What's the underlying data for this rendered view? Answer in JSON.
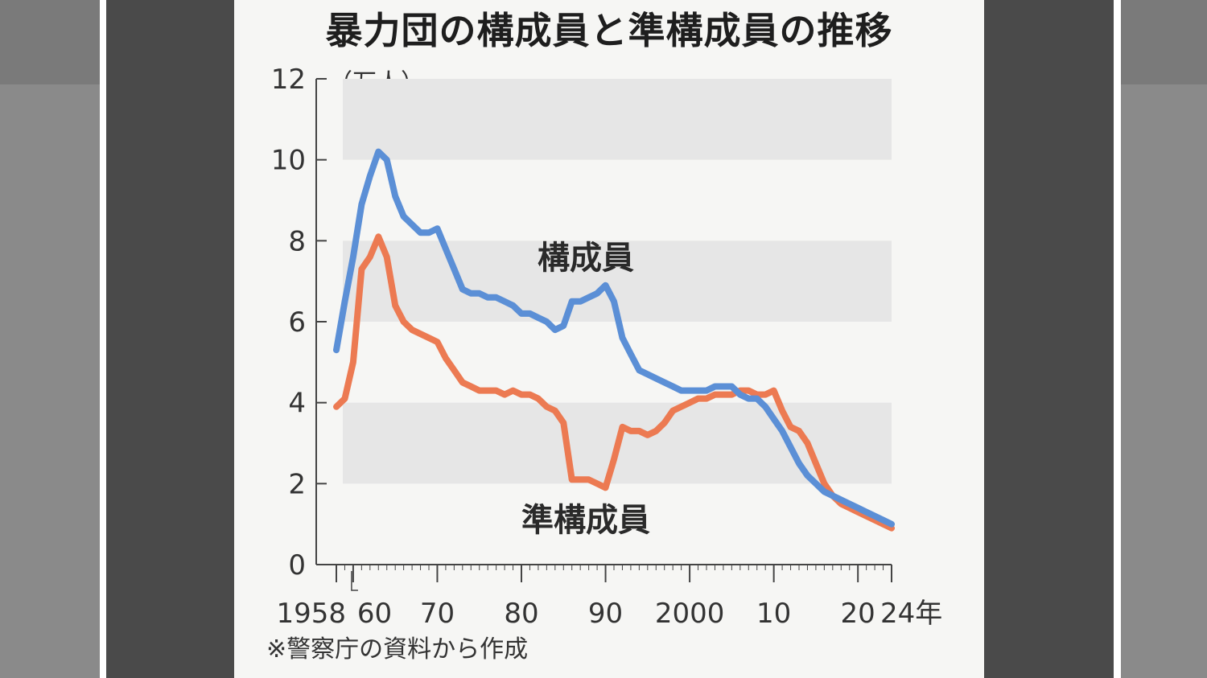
{
  "title": "暴力団の構成員と準構成員の推移",
  "unit": "（万人）",
  "source": "※警察庁の資料から作成",
  "colors": {
    "members": "#5b8fd6",
    "associates": "#ec7a52",
    "band": "#e6e6e6",
    "axis": "#444444"
  },
  "chart_data": {
    "type": "line",
    "title": "暴力団の構成員と準構成員の推移",
    "ylabel": "（万人）",
    "xlabel": "",
    "ylim": [
      0,
      12
    ],
    "xlim": [
      1958,
      2024
    ],
    "y_ticks": [
      0,
      2,
      4,
      6,
      8,
      10,
      12
    ],
    "x_ticks": [
      {
        "value": 1958,
        "label": "1958"
      },
      {
        "value": 1960,
        "label": "60"
      },
      {
        "value": 1970,
        "label": "70"
      },
      {
        "value": 1980,
        "label": "80"
      },
      {
        "value": 1990,
        "label": "90"
      },
      {
        "value": 2000,
        "label": "2000"
      },
      {
        "value": 2010,
        "label": "10"
      },
      {
        "value": 2020,
        "label": "20"
      },
      {
        "value": 2024,
        "label": "24年"
      }
    ],
    "banded_background": true,
    "series": [
      {
        "name": "構成員",
        "color": "#5b8fd6",
        "x": [
          1958,
          1959,
          1960,
          1961,
          1962,
          1963,
          1964,
          1965,
          1966,
          1967,
          1968,
          1969,
          1970,
          1971,
          1972,
          1973,
          1974,
          1975,
          1976,
          1977,
          1978,
          1979,
          1980,
          1981,
          1982,
          1983,
          1984,
          1985,
          1986,
          1987,
          1988,
          1989,
          1990,
          1991,
          1992,
          1993,
          1994,
          1995,
          1996,
          1997,
          1998,
          1999,
          2000,
          2001,
          2002,
          2003,
          2004,
          2005,
          2006,
          2007,
          2008,
          2009,
          2010,
          2011,
          2012,
          2013,
          2014,
          2015,
          2016,
          2017,
          2018,
          2019,
          2020,
          2021,
          2022,
          2023,
          2024
        ],
        "values": [
          5.3,
          6.5,
          7.6,
          8.9,
          9.6,
          10.2,
          10.0,
          9.1,
          8.6,
          8.4,
          8.2,
          8.2,
          8.3,
          7.8,
          7.3,
          6.8,
          6.7,
          6.7,
          6.6,
          6.6,
          6.5,
          6.4,
          6.2,
          6.2,
          6.1,
          6.0,
          5.8,
          5.9,
          6.5,
          6.5,
          6.6,
          6.7,
          6.9,
          6.5,
          5.6,
          5.2,
          4.8,
          4.7,
          4.6,
          4.5,
          4.4,
          4.3,
          4.3,
          4.3,
          4.3,
          4.4,
          4.4,
          4.4,
          4.2,
          4.1,
          4.1,
          3.9,
          3.6,
          3.3,
          2.9,
          2.5,
          2.2,
          2.0,
          1.8,
          1.7,
          1.6,
          1.5,
          1.4,
          1.3,
          1.2,
          1.1,
          1.0
        ]
      },
      {
        "name": "準構成員",
        "color": "#ec7a52",
        "x": [
          1958,
          1959,
          1960,
          1961,
          1962,
          1963,
          1964,
          1965,
          1966,
          1967,
          1968,
          1969,
          1970,
          1971,
          1972,
          1973,
          1974,
          1975,
          1976,
          1977,
          1978,
          1979,
          1980,
          1981,
          1982,
          1983,
          1984,
          1985,
          1986,
          1987,
          1988,
          1989,
          1990,
          1991,
          1992,
          1993,
          1994,
          1995,
          1996,
          1997,
          1998,
          1999,
          2000,
          2001,
          2002,
          2003,
          2004,
          2005,
          2006,
          2007,
          2008,
          2009,
          2010,
          2011,
          2012,
          2013,
          2014,
          2015,
          2016,
          2017,
          2018,
          2019,
          2020,
          2021,
          2022,
          2023,
          2024
        ],
        "values": [
          3.9,
          4.1,
          5.0,
          7.3,
          7.6,
          8.1,
          7.6,
          6.4,
          6.0,
          5.8,
          5.7,
          5.6,
          5.5,
          5.1,
          4.8,
          4.5,
          4.4,
          4.3,
          4.3,
          4.3,
          4.2,
          4.3,
          4.2,
          4.2,
          4.1,
          3.9,
          3.8,
          3.5,
          2.1,
          2.1,
          2.1,
          2.0,
          1.9,
          2.6,
          3.4,
          3.3,
          3.3,
          3.2,
          3.3,
          3.5,
          3.8,
          3.9,
          4.0,
          4.1,
          4.1,
          4.2,
          4.2,
          4.2,
          4.3,
          4.3,
          4.2,
          4.2,
          4.3,
          3.8,
          3.4,
          3.3,
          3.0,
          2.5,
          2.0,
          1.7,
          1.5,
          1.4,
          1.3,
          1.2,
          1.1,
          1.0,
          0.9
        ]
      }
    ]
  }
}
